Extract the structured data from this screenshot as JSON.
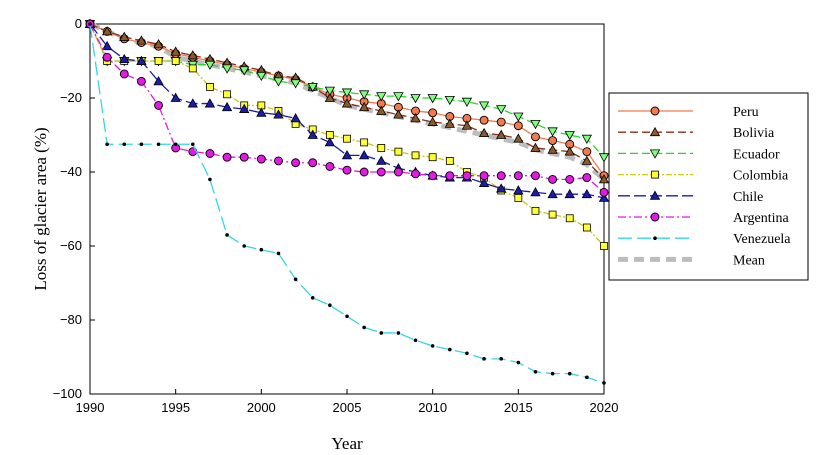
{
  "chart_data": {
    "type": "line",
    "xlabel": "Year",
    "ylabel": "Loss of glacier area (%)",
    "xlim": [
      1990,
      2020
    ],
    "ylim": [
      -100,
      0
    ],
    "x_ticks": [
      1990,
      1995,
      2000,
      2005,
      2010,
      2015,
      2020
    ],
    "y_ticks": [
      0,
      -20,
      -40,
      -60,
      -80,
      -100
    ],
    "legend_position": "right",
    "x": [
      1990,
      1991,
      1992,
      1993,
      1994,
      1995,
      1996,
      1997,
      1998,
      1999,
      2000,
      2001,
      2002,
      2003,
      2004,
      2005,
      2006,
      2007,
      2008,
      2009,
      2010,
      2011,
      2012,
      2013,
      2014,
      2015,
      2016,
      2017,
      2018,
      2019,
      2020
    ],
    "series": [
      {
        "name": "Mean",
        "color": "#bdbdbd",
        "marker": "none",
        "dash": "10,6",
        "values": [
          0,
          -2,
          -4,
          -5,
          -6,
          -9,
          -10,
          -11,
          -12,
          -13,
          -14,
          -15,
          -16,
          -18,
          -20,
          -22,
          -23,
          -24,
          -25,
          -26,
          -27,
          -28,
          -29,
          -30,
          -31,
          -32,
          -34,
          -35,
          -36,
          -38,
          -42
        ]
      },
      {
        "name": "Peru",
        "color": "#f4794d",
        "marker": "circle",
        "markerFill": "#f4794d",
        "dash": "",
        "values": [
          0,
          -2,
          -4,
          -5,
          -6,
          -8,
          -9,
          -10,
          -11,
          -12,
          -13,
          -14,
          -15,
          -17,
          -19,
          -20,
          -21,
          -21.5,
          -22.5,
          -23.5,
          -24,
          -25,
          -25.5,
          -26,
          -26.5,
          -27.5,
          -30.5,
          -31.5,
          -32.5,
          -34.5,
          -41
        ]
      },
      {
        "name": "Bolivia",
        "color": "#8b2e1c",
        "marker": "triangle",
        "markerFill": "#8b5a2b",
        "dash": "8,4",
        "values": [
          0,
          -2,
          -3.5,
          -4.5,
          -5.5,
          -7.5,
          -8.5,
          -9.5,
          -10.5,
          -11.5,
          -12.5,
          -14,
          -14.5,
          -17,
          -20,
          -21.5,
          -22.5,
          -23.5,
          -24.5,
          -25.5,
          -26.5,
          -27,
          -27.5,
          -29.5,
          -30,
          -31,
          -33.5,
          -34,
          -34.5,
          -37,
          -42
        ]
      },
      {
        "name": "Ecuador",
        "color": "#26d626",
        "marker": "triangle-down",
        "markerFill": "#7fff7f",
        "dash": "8,4",
        "values": [
          0,
          -10,
          -10,
          -10,
          -10,
          -10,
          -11,
          -11,
          -12,
          -12.5,
          -14,
          -15.5,
          -16,
          -17,
          -18,
          -18.5,
          -19,
          -19.5,
          -19.5,
          -20,
          -20,
          -20.5,
          -21,
          -22,
          -23,
          -25,
          -27,
          -29,
          -30,
          -31,
          -36
        ]
      },
      {
        "name": "Colombia",
        "color": "#c8c819",
        "marker": "square",
        "markerFill": "#ffff33",
        "dash": "6,2,2,2",
        "values": [
          0,
          -10,
          -10,
          -10,
          -10,
          -10,
          -12,
          -17,
          -19,
          -22,
          -22,
          -23.5,
          -27,
          -28.5,
          -30,
          -31,
          -32,
          -33.5,
          -34.5,
          -35.5,
          -36,
          -37,
          -40,
          -41.5,
          -45,
          -47,
          -50.5,
          -51.5,
          -52.5,
          -55,
          -60
        ]
      },
      {
        "name": "Chile",
        "color": "#1c1caa",
        "marker": "triangle",
        "markerFill": "#1c1caa",
        "dash": "12,4",
        "values": [
          0,
          -6,
          -9.5,
          -10,
          -15.5,
          -20,
          -21.5,
          -21.5,
          -22.5,
          -23,
          -24,
          -24.5,
          -25.5,
          -30,
          -32,
          -35.5,
          -35.5,
          -37,
          -39,
          -40,
          -41,
          -41.5,
          -41.5,
          -43,
          -44.5,
          -45,
          -45.5,
          -46,
          -46,
          -46,
          -47
        ]
      },
      {
        "name": "Argentina",
        "color": "#e31ae3",
        "marker": "circle",
        "markerFill": "#e31ae3",
        "dash": "8,3,2,3",
        "values": [
          0,
          -9,
          -13.5,
          -15.5,
          -22,
          -33.5,
          -34.5,
          -35,
          -36,
          -36,
          -36.5,
          -37,
          -37.5,
          -37.5,
          -38.5,
          -39.5,
          -40,
          -40,
          -40,
          -40.5,
          -41,
          -41,
          -41,
          -41,
          -41,
          -41,
          -41,
          -42,
          -42,
          -41.5,
          -45.5
        ]
      },
      {
        "name": "Venezuela",
        "color": "#33d6e6",
        "marker": "dot",
        "markerFill": "#000000",
        "dash": "14,5",
        "values": [
          0,
          -32.5,
          -32.5,
          -32.5,
          -32.5,
          -32.5,
          -32.5,
          -42,
          -57,
          -60,
          -61,
          -62,
          -69,
          -74,
          -76,
          -79,
          -82,
          -83.5,
          -83.5,
          -85.5,
          -87,
          -88,
          -89,
          -90.5,
          -90.5,
          -91.5,
          -94,
          -94.5,
          -94.5,
          -95.5,
          -97
        ]
      }
    ],
    "legend_order": [
      "Peru",
      "Bolivia",
      "Ecuador",
      "Colombia",
      "Chile",
      "Argentina",
      "Venezuela",
      "Mean"
    ]
  }
}
